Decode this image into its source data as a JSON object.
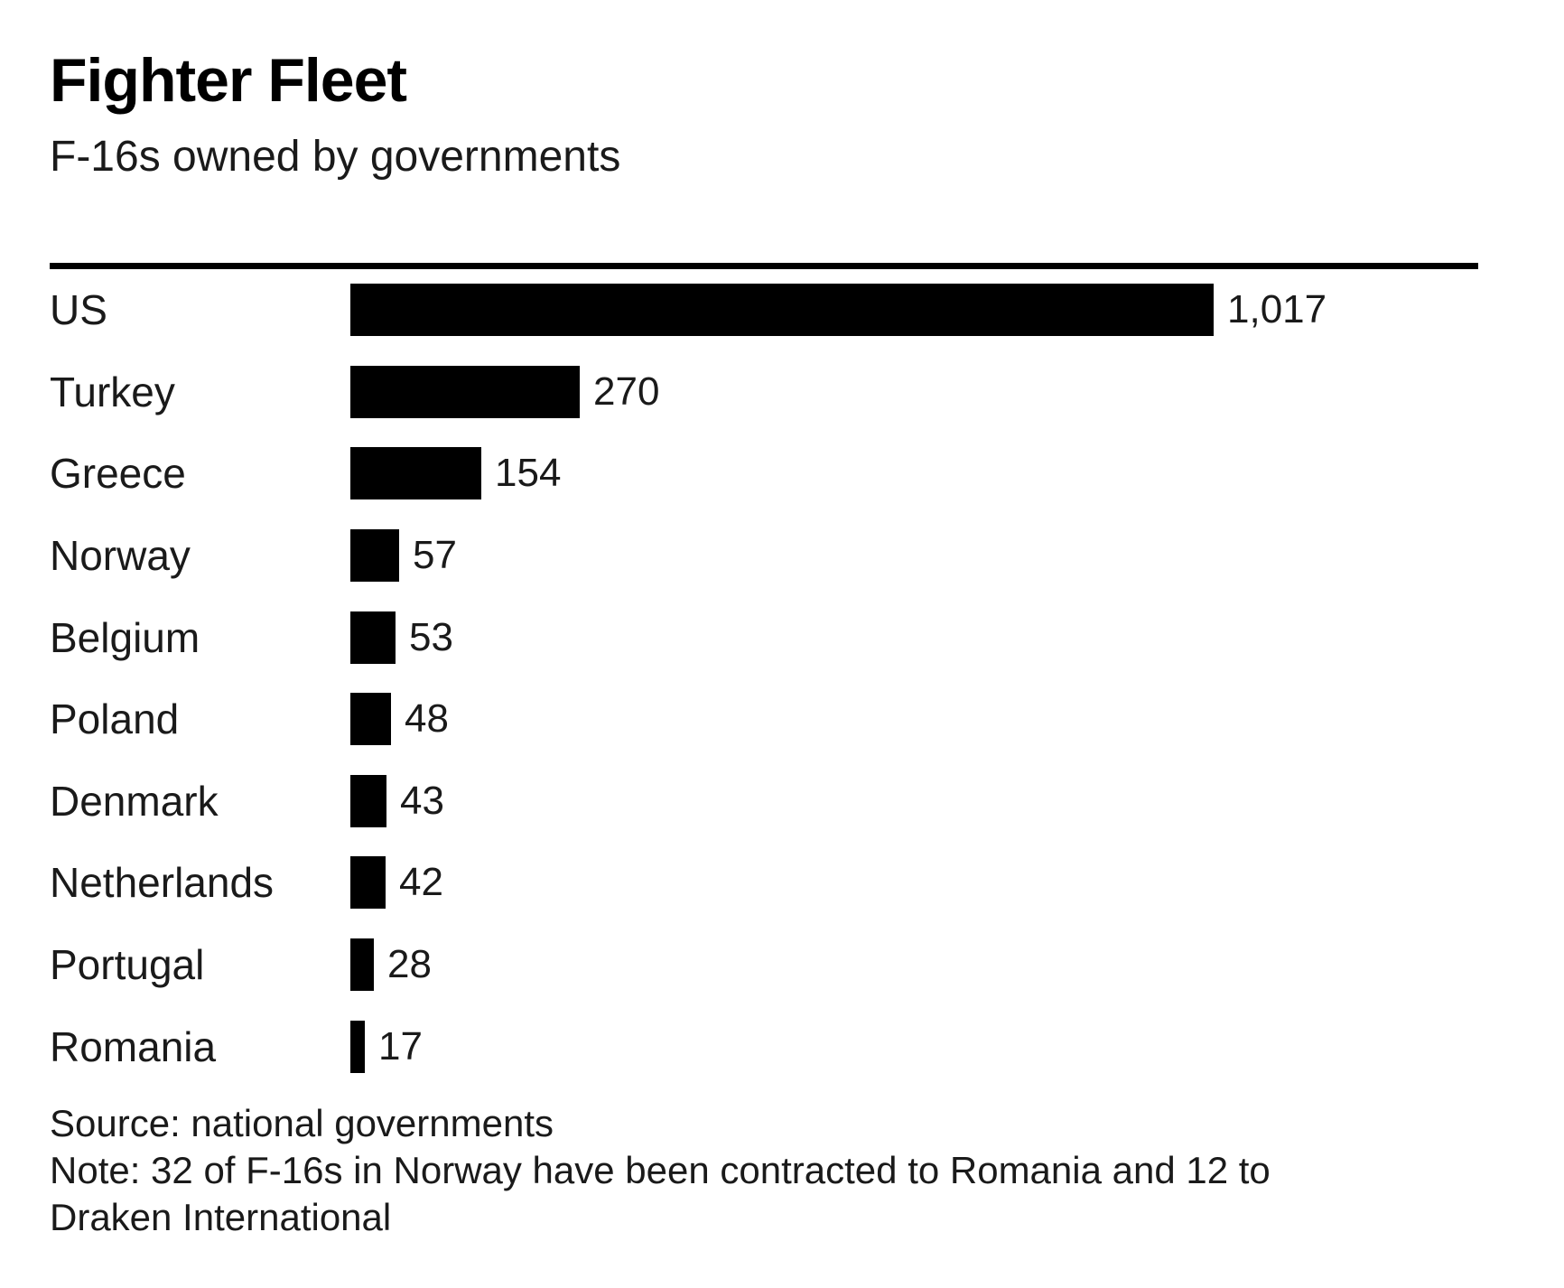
{
  "header": {
    "title": "Fighter Fleet",
    "subtitle": "F-16s owned by governments"
  },
  "chart_data": {
    "type": "bar",
    "orientation": "horizontal",
    "title": "Fighter Fleet",
    "subtitle": "F-16s owned by governments",
    "xlabel": "",
    "ylabel": "",
    "xlim": [
      0,
      1017
    ],
    "grid": false,
    "legend": false,
    "bar_color": "#000000",
    "categories": [
      "US",
      "Turkey",
      "Greece",
      "Norway",
      "Belgium",
      "Poland",
      "Denmark",
      "Netherlands",
      "Portugal",
      "Romania"
    ],
    "values": [
      1017,
      270,
      154,
      57,
      53,
      48,
      43,
      42,
      28,
      17
    ],
    "value_labels": [
      "1,017",
      "270",
      "154",
      "57",
      "53",
      "48",
      "43",
      "42",
      "28",
      "17"
    ]
  },
  "footer": {
    "source": "Source: national governments",
    "note_lines": [
      "Note: 32 of F-16s in Norway have been contracted to Romania and 12 to",
      "Draken International"
    ]
  },
  "colors": {
    "background": "#ffffff",
    "bar": "#000000",
    "rule": "#000000",
    "text": "#1a1a1a",
    "title_text": "#000000"
  }
}
